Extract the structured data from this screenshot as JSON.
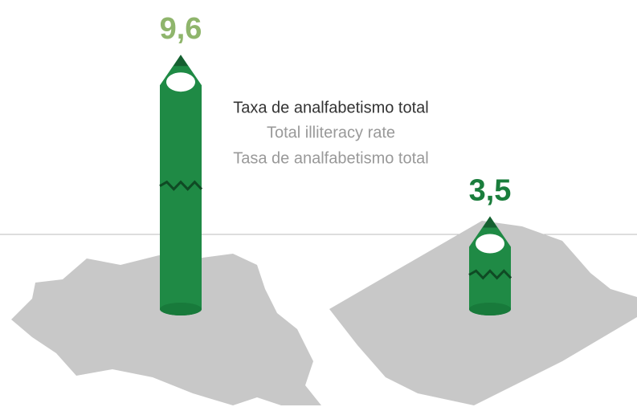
{
  "chart_data": {
    "type": "bar",
    "title": "Taxa de analfabetismo total",
    "subtitles": [
      "Total illiteracy rate",
      "Tasa de analfabetismo total"
    ],
    "categories": [
      null,
      null
    ],
    "values": [
      9.6,
      3.5
    ],
    "value_labels": [
      "9,6",
      "3,5"
    ],
    "value_label_colors": [
      "#8fb56c",
      "#1a7d3c"
    ],
    "color": "#1f8a45"
  }
}
